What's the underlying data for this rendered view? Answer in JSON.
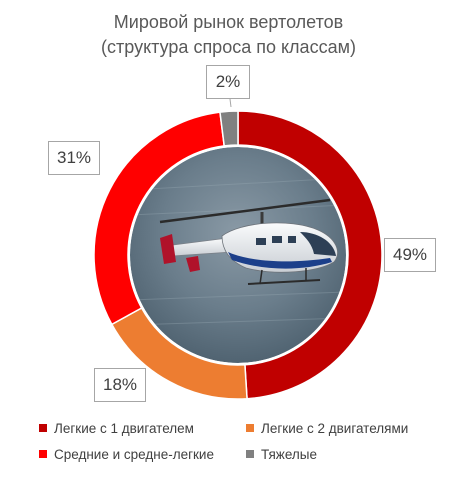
{
  "chart_data": {
    "type": "pie",
    "title_lines": [
      "Мировой рынок вертолетов",
      "(структура спроса по классам)"
    ],
    "categories": [
      "Легкие с 1 двигателем",
      "Легкие с 2 двигателями",
      "Средние и средне-легкие",
      "Тяжелые"
    ],
    "values": [
      49,
      18,
      31,
      2
    ],
    "value_labels": [
      "49%",
      "18%",
      "31%",
      "2%"
    ],
    "colors": [
      "#c00000",
      "#ed7d31",
      "#ff0000",
      "#808080"
    ],
    "donut": true,
    "center_image": "helicopter-photo",
    "legend_position": "bottom"
  }
}
